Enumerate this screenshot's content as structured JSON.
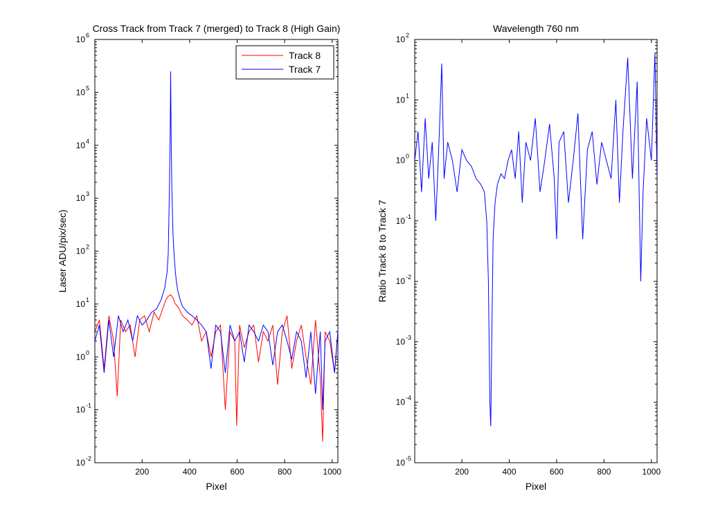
{
  "chart_data": [
    {
      "type": "line",
      "title": "Cross Track from Track 7 (merged) to Track 8 (High Gain)",
      "xlabel": "Pixel",
      "ylabel": "Laser ADU/pix/sec)",
      "yscale": "log",
      "xlim": [
        1,
        1024
      ],
      "ylim": [
        0.01,
        1000000
      ],
      "xticks": [
        200,
        400,
        600,
        800,
        1000
      ],
      "yticks": [
        {
          "base": "10",
          "exp": "-2",
          "value": 0.01
        },
        {
          "base": "10",
          "exp": "-1",
          "value": 0.1
        },
        {
          "base": "10",
          "exp": "0",
          "value": 1
        },
        {
          "base": "10",
          "exp": "1",
          "value": 10
        },
        {
          "base": "10",
          "exp": "2",
          "value": 100
        },
        {
          "base": "10",
          "exp": "3",
          "value": 1000
        },
        {
          "base": "10",
          "exp": "4",
          "value": 10000
        },
        {
          "base": "10",
          "exp": "5",
          "value": 100000
        },
        {
          "base": "10",
          "exp": "6",
          "value": 1000000
        }
      ],
      "legend": {
        "position": "top-right"
      },
      "series": [
        {
          "name": "Track 8",
          "color": "#ff0000",
          "x": [
            1,
            20,
            40,
            60,
            80,
            95,
            110,
            130,
            150,
            170,
            190,
            210,
            230,
            250,
            270,
            290,
            300,
            310,
            320,
            330,
            340,
            350,
            370,
            390,
            410,
            430,
            450,
            470,
            490,
            510,
            530,
            550,
            570,
            590,
            598,
            610,
            630,
            650,
            670,
            690,
            710,
            730,
            750,
            770,
            790,
            810,
            830,
            850,
            870,
            890,
            910,
            930,
            950,
            960,
            970,
            990,
            1010,
            1024
          ],
          "y": [
            3,
            5,
            0.6,
            6,
            2,
            0.18,
            5,
            3,
            4,
            1,
            5,
            6,
            3,
            7,
            5,
            9,
            12,
            14,
            15,
            13,
            10,
            9,
            6,
            5,
            4,
            6,
            2,
            3,
            1,
            3,
            4,
            0.1,
            3,
            2,
            0.05,
            4,
            1.5,
            3,
            4,
            0.8,
            3,
            2,
            4,
            0.3,
            3,
            6,
            0.6,
            2,
            4,
            1,
            0.3,
            5,
            0.4,
            0.025,
            3,
            2,
            0.5,
            3
          ]
        },
        {
          "name": "Track 7",
          "color": "#0000ff",
          "x": [
            1,
            20,
            40,
            60,
            80,
            100,
            120,
            140,
            160,
            180,
            200,
            220,
            240,
            260,
            280,
            295,
            305,
            310,
            315,
            318,
            320,
            322,
            325,
            330,
            335,
            340,
            345,
            350,
            360,
            370,
            390,
            410,
            430,
            450,
            470,
            490,
            510,
            530,
            550,
            570,
            590,
            610,
            630,
            650,
            670,
            690,
            710,
            730,
            750,
            770,
            790,
            810,
            830,
            850,
            870,
            890,
            910,
            930,
            950,
            960,
            970,
            990,
            1010,
            1024
          ],
          "y": [
            2,
            4,
            0.5,
            5,
            1,
            6,
            3,
            5,
            2,
            6,
            4,
            5,
            7,
            8,
            12,
            20,
            40,
            90,
            1500,
            20000,
            250000,
            20000,
            1500,
            200,
            80,
            40,
            25,
            18,
            12,
            9,
            7,
            6,
            5,
            4,
            3,
            0.6,
            4,
            3,
            0.5,
            4,
            2,
            3,
            0.8,
            4,
            3,
            2,
            4,
            3,
            0.7,
            3,
            4,
            2,
            0.9,
            3,
            2,
            0.4,
            3,
            0.2,
            3,
            0.1,
            2,
            3,
            0.5,
            3
          ]
        }
      ]
    },
    {
      "type": "line",
      "title": "Wavelength 760 nm",
      "xlabel": "Pixel",
      "ylabel": "Ratio Track 8 to Track 7",
      "yscale": "log",
      "xlim": [
        1,
        1024
      ],
      "ylim": [
        1e-05,
        100
      ],
      "xticks": [
        200,
        400,
        600,
        800,
        1000
      ],
      "yticks": [
        {
          "base": "10",
          "exp": "-5",
          "value": 1e-05
        },
        {
          "base": "10",
          "exp": "-4",
          "value": 0.0001
        },
        {
          "base": "10",
          "exp": "-3",
          "value": 0.001
        },
        {
          "base": "10",
          "exp": "-2",
          "value": 0.01
        },
        {
          "base": "10",
          "exp": "-1",
          "value": 0.1
        },
        {
          "base": "10",
          "exp": "0",
          "value": 1
        },
        {
          "base": "10",
          "exp": "1",
          "value": 10
        },
        {
          "base": "10",
          "exp": "2",
          "value": 100
        }
      ],
      "series": [
        {
          "color": "#0000ff",
          "x": [
            1,
            15,
            30,
            45,
            60,
            75,
            90,
            105,
            115,
            125,
            140,
            160,
            180,
            200,
            220,
            240,
            260,
            280,
            295,
            305,
            312,
            318,
            322,
            326,
            332,
            340,
            350,
            365,
            380,
            395,
            410,
            425,
            440,
            455,
            470,
            490,
            510,
            530,
            550,
            570,
            590,
            600,
            610,
            630,
            650,
            670,
            690,
            710,
            730,
            750,
            770,
            790,
            810,
            830,
            850,
            865,
            880,
            900,
            920,
            940,
            955,
            965,
            980,
            1000,
            1015,
            1024
          ],
          "y": [
            1,
            3,
            0.3,
            5,
            0.5,
            2,
            0.1,
            3,
            40,
            0.5,
            2,
            1,
            0.3,
            1.5,
            1,
            0.8,
            0.5,
            0.4,
            0.3,
            0.1,
            0.01,
            0.0001,
            4e-05,
            0.001,
            0.05,
            0.2,
            0.4,
            0.6,
            0.5,
            1,
            1.5,
            0.5,
            3,
            0.2,
            2,
            1,
            5,
            0.3,
            1,
            4,
            0.5,
            0.05,
            2,
            3,
            0.2,
            1,
            6,
            0.05,
            1.5,
            3,
            0.4,
            2,
            1,
            0.5,
            10,
            0.2,
            3,
            50,
            0.5,
            20,
            0.01,
            0.3,
            5,
            1,
            60,
            0.5
          ]
        }
      ]
    }
  ]
}
